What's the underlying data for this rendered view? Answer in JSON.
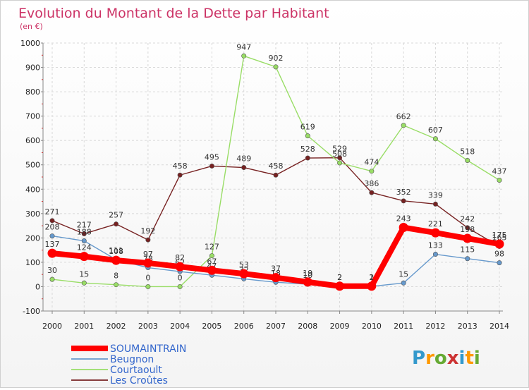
{
  "chart_data": {
    "type": "line",
    "title": "Evolution du Montant de la Dette par Habitant",
    "subtitle": "(en €)",
    "x": [
      "2000",
      "2001",
      "2002",
      "2003",
      "2004",
      "2005",
      "2006",
      "2007",
      "2008",
      "2009",
      "2010",
      "2011",
      "2012",
      "2013",
      "2014"
    ],
    "ylim": [
      -100,
      1000
    ],
    "yticks": [
      "-100",
      "0",
      "100",
      "200",
      "300",
      "400",
      "500",
      "600",
      "700",
      "800",
      "900",
      "1000"
    ],
    "grid": true,
    "legend_position": "bottom-left",
    "series": [
      {
        "name": "SOUMAINTRAIN",
        "color": "#ff0000",
        "values": [
          137,
          124,
          108,
          97,
          82,
          67,
          53,
          37,
          19,
          2,
          2,
          243,
          221,
          198,
          175
        ]
      },
      {
        "name": "Beugnon",
        "color": "#6699cc",
        "values": [
          208,
          188,
          111,
          78,
          62,
          47,
          32,
          18,
          10,
          2,
          1,
          15,
          133,
          115,
          98
        ]
      },
      {
        "name": "Courtaoult",
        "color": "#99dd66",
        "values": [
          30,
          15,
          8,
          0,
          0,
          127,
          947,
          902,
          619,
          508,
          474,
          662,
          607,
          518,
          437
        ]
      },
      {
        "name": "Les Croûtes",
        "color": "#772222",
        "values": [
          271,
          217,
          257,
          192,
          458,
          495,
          489,
          458,
          528,
          529,
          386,
          352,
          339,
          242,
          165
        ]
      }
    ]
  },
  "logo": {
    "text": "Proxiti"
  }
}
